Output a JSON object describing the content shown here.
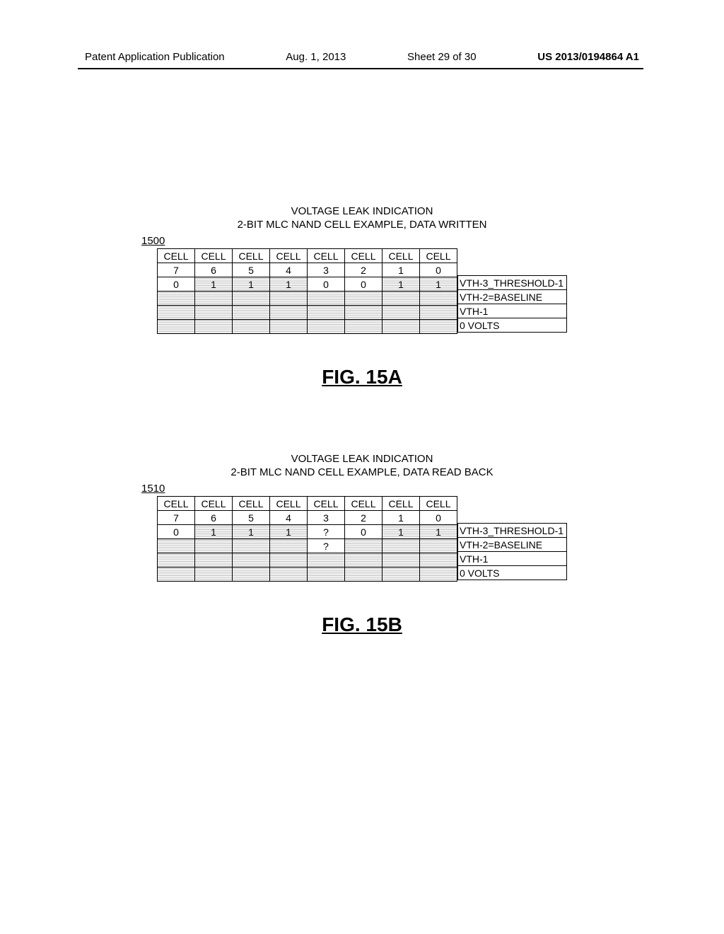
{
  "header": {
    "left": "Patent Application Publication",
    "date": "Aug. 1, 2013",
    "sheet": "Sheet 29 of 30",
    "pub": "US 2013/0194864 A1"
  },
  "figA": {
    "title1": "VOLTAGE LEAK INDICATION",
    "title2": "2-BIT MLC NAND CELL EXAMPLE, DATA WRITTEN",
    "ref": "1500",
    "cells": [
      "CELL",
      "CELL",
      "CELL",
      "CELL",
      "CELL",
      "CELL",
      "CELL",
      "CELL"
    ],
    "nums": [
      "7",
      "6",
      "5",
      "4",
      "3",
      "2",
      "1",
      "0"
    ],
    "row_vth3": [
      "0",
      "1",
      "1",
      "1",
      "0",
      "0",
      "1",
      "1"
    ],
    "row_vth3_h": [
      false,
      true,
      true,
      true,
      false,
      false,
      true,
      true
    ],
    "row_vth2": [
      "",
      "",
      "",
      "",
      "",
      "",
      "",
      ""
    ],
    "row_vth2_h": [
      true,
      true,
      true,
      true,
      true,
      true,
      true,
      true
    ],
    "row_vth1": [
      "",
      "",
      "",
      "",
      "",
      "",
      "",
      ""
    ],
    "row_vth1_h": [
      true,
      true,
      true,
      true,
      true,
      true,
      true,
      true
    ],
    "row_0v": [
      "",
      "",
      "",
      "",
      "",
      "",
      "",
      ""
    ],
    "row_0v_h": [
      true,
      true,
      true,
      true,
      true,
      true,
      true,
      true
    ],
    "labels": [
      "VTH-3_THRESHOLD-1",
      "VTH-2=BASELINE",
      "VTH-1",
      "0 VOLTS"
    ],
    "caption": "FIG. 15A"
  },
  "figB": {
    "title1": "VOLTAGE LEAK INDICATION",
    "title2": "2-BIT MLC NAND CELL EXAMPLE, DATA READ BACK",
    "ref": "1510",
    "cells": [
      "CELL",
      "CELL",
      "CELL",
      "CELL",
      "CELL",
      "CELL",
      "CELL",
      "CELL"
    ],
    "nums": [
      "7",
      "6",
      "5",
      "4",
      "3",
      "2",
      "1",
      "0"
    ],
    "row_vth3": [
      "0",
      "1",
      "1",
      "1",
      "?",
      "0",
      "1",
      "1"
    ],
    "row_vth3_h": [
      false,
      true,
      true,
      true,
      false,
      false,
      true,
      true
    ],
    "row_vth2": [
      "",
      "",
      "",
      "",
      "?",
      "",
      "",
      ""
    ],
    "row_vth2_h": [
      true,
      true,
      true,
      true,
      false,
      true,
      true,
      true
    ],
    "row_vth1": [
      "",
      "",
      "",
      "",
      "",
      "",
      "",
      ""
    ],
    "row_vth1_h": [
      true,
      true,
      true,
      true,
      true,
      true,
      true,
      true
    ],
    "row_0v": [
      "",
      "",
      "",
      "",
      "",
      "",
      "",
      ""
    ],
    "row_0v_h": [
      true,
      true,
      true,
      true,
      true,
      true,
      true,
      true
    ],
    "labels": [
      "VTH-3_THRESHOLD-1",
      "VTH-2=BASELINE",
      "VTH-1",
      "0 VOLTS"
    ],
    "caption": "FIG. 15B"
  }
}
